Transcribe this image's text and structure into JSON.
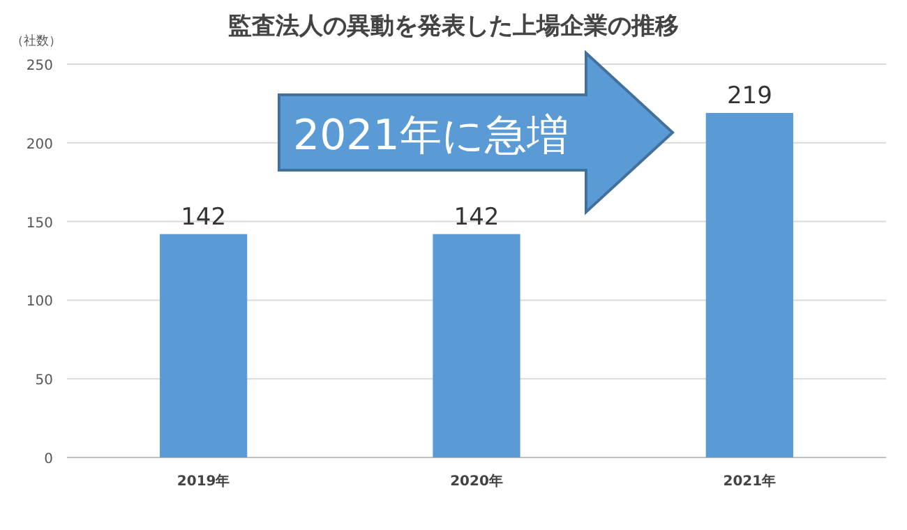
{
  "chart_data": {
    "type": "bar",
    "title": "監査法人の異動を発表した上場企業の推移",
    "ylabel": "（社数）",
    "categories": [
      "2019年",
      "2020年",
      "2021年"
    ],
    "values": [
      142,
      142,
      219
    ],
    "color": "#5b9bd5",
    "ylim": [
      0,
      250
    ],
    "yticks": [
      0,
      50,
      100,
      150,
      200,
      250
    ],
    "grid": "y",
    "data_labels": true,
    "annotations": [
      "2021年に急増"
    ]
  }
}
